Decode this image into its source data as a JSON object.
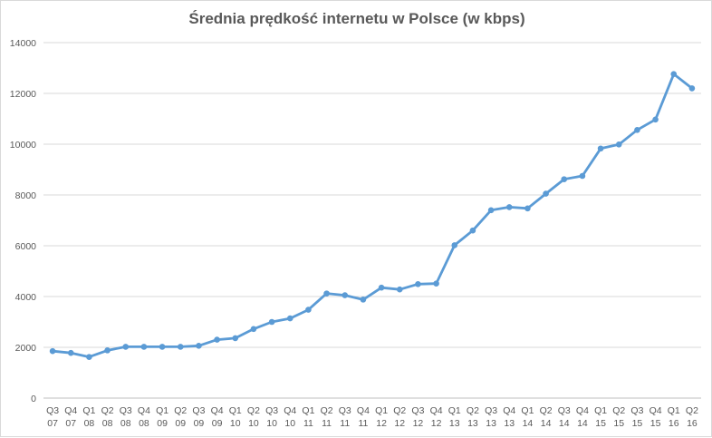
{
  "chart_data": {
    "type": "line",
    "title": "Średnia prędkość internetu w Polsce (w kbps)",
    "xlabel": "",
    "ylabel": "",
    "ylim": [
      0,
      14000
    ],
    "yticks": [
      0,
      2000,
      4000,
      6000,
      8000,
      10000,
      12000,
      14000
    ],
    "grid": true,
    "legend": "none",
    "categories": [
      [
        "Q3",
        "07"
      ],
      [
        "Q4",
        "07"
      ],
      [
        "Q1",
        "08"
      ],
      [
        "Q2",
        "08"
      ],
      [
        "Q3",
        "08"
      ],
      [
        "Q4",
        "08"
      ],
      [
        "Q1",
        "09"
      ],
      [
        "Q2",
        "09"
      ],
      [
        "Q3",
        "09"
      ],
      [
        "Q4",
        "09"
      ],
      [
        "Q1",
        "10"
      ],
      [
        "Q2",
        "10"
      ],
      [
        "Q3",
        "10"
      ],
      [
        "Q4",
        "10"
      ],
      [
        "Q1",
        "11"
      ],
      [
        "Q2",
        "11"
      ],
      [
        "Q3",
        "11"
      ],
      [
        "Q4",
        "11"
      ],
      [
        "Q1",
        "12"
      ],
      [
        "Q2",
        "12"
      ],
      [
        "Q3",
        "12"
      ],
      [
        "Q4",
        "12"
      ],
      [
        "Q1",
        "13"
      ],
      [
        "Q2",
        "13"
      ],
      [
        "Q3",
        "13"
      ],
      [
        "Q4",
        "13"
      ],
      [
        "Q1",
        "14"
      ],
      [
        "Q2",
        "14"
      ],
      [
        "Q3",
        "14"
      ],
      [
        "Q4",
        "14"
      ],
      [
        "Q1",
        "15"
      ],
      [
        "Q2",
        "15"
      ],
      [
        "Q3",
        "15"
      ],
      [
        "Q4",
        "15"
      ],
      [
        "Q1",
        "16"
      ],
      [
        "Q2",
        "16"
      ]
    ],
    "series": [
      {
        "color": "#5b9bd5",
        "values": [
          1850,
          1780,
          1620,
          1880,
          2020,
          2020,
          2020,
          2020,
          2060,
          2300,
          2360,
          2720,
          3000,
          3140,
          3480,
          4120,
          4050,
          3880,
          4350,
          4280,
          4490,
          4510,
          6020,
          6600,
          7400,
          7520,
          7470,
          8050,
          8620,
          8750,
          9830,
          9990,
          10560,
          10970,
          12760,
          12200
        ]
      }
    ]
  }
}
